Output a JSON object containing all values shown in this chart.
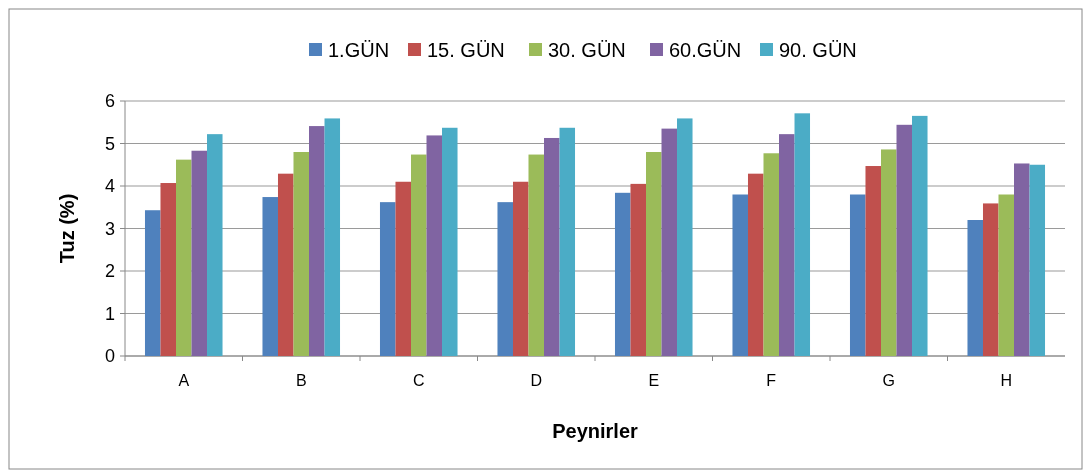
{
  "chart_data": {
    "type": "bar",
    "xlabel": "Peynirler",
    "ylabel": "Tuz (%)",
    "categories": [
      "A",
      "B",
      "C",
      "D",
      "E",
      "F",
      "G",
      "H"
    ],
    "series": [
      {
        "name": "1.GÜN",
        "color": "#4f81bd",
        "values": [
          3.43,
          3.74,
          3.62,
          3.62,
          3.84,
          3.8,
          3.8,
          3.2
        ]
      },
      {
        "name": "15. GÜN",
        "color": "#c0504d",
        "values": [
          4.07,
          4.29,
          4.1,
          4.1,
          4.05,
          4.29,
          4.47,
          3.59
        ]
      },
      {
        "name": "30. GÜN",
        "color": "#9bbb59",
        "values": [
          4.62,
          4.8,
          4.74,
          4.74,
          4.8,
          4.77,
          4.86,
          3.8
        ]
      },
      {
        "name": "60.GÜN",
        "color": "#8064a2",
        "values": [
          4.83,
          5.41,
          5.19,
          5.13,
          5.35,
          5.22,
          5.44,
          4.53
        ]
      },
      {
        "name": "90. GÜN",
        "color": "#4bacc6",
        "values": [
          5.22,
          5.59,
          5.37,
          5.37,
          5.59,
          5.71,
          5.65,
          4.5
        ]
      }
    ],
    "ylim": [
      0,
      6
    ],
    "yticks": [
      0,
      1,
      2,
      3,
      4,
      5,
      6
    ],
    "grid": "y",
    "legend": "top"
  }
}
